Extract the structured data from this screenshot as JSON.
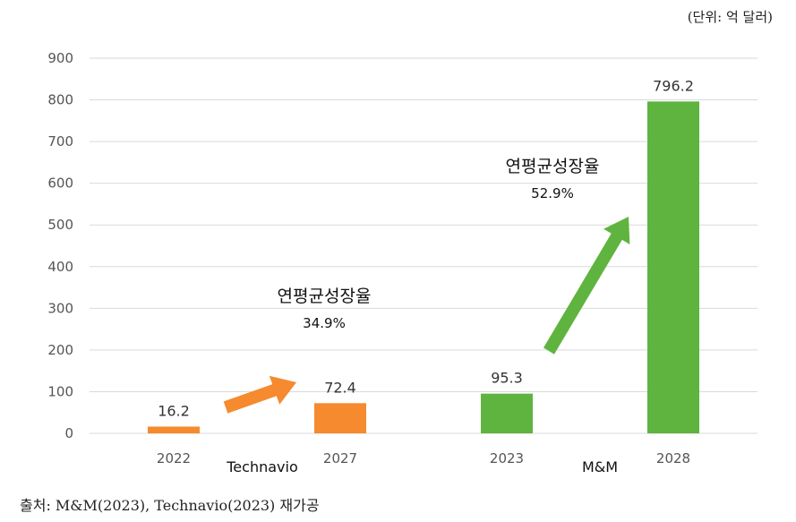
{
  "unit_note": "(단위: 억 달러)",
  "source": "출처: M&M(2023), Technavio(2023) 재가공",
  "colors": {
    "technavio": "#F58A2E",
    "mm": "#5FB43F",
    "grid": "#D9D9D9",
    "axis_text": "#555555"
  },
  "chart_data": {
    "type": "bar",
    "ylim": [
      0,
      900
    ],
    "yticks": [
      0,
      100,
      200,
      300,
      400,
      500,
      600,
      700,
      800,
      900
    ],
    "grid": true,
    "groups": [
      {
        "name": "Technavio",
        "color": "#F58A2E",
        "bars": [
          {
            "x": "2022",
            "value": 16.2,
            "label": "16.2"
          },
          {
            "x": "2027",
            "value": 72.4,
            "label": "72.4"
          }
        ],
        "cagr_title": "연평균성장율",
        "cagr_value": "34.9%"
      },
      {
        "name": "M&M",
        "color": "#5FB43F",
        "bars": [
          {
            "x": "2023",
            "value": 95.3,
            "label": "95.3"
          },
          {
            "x": "2028",
            "value": 796.2,
            "label": "796.2"
          }
        ],
        "cagr_title": "연평균성장율",
        "cagr_value": "52.9%"
      }
    ]
  }
}
